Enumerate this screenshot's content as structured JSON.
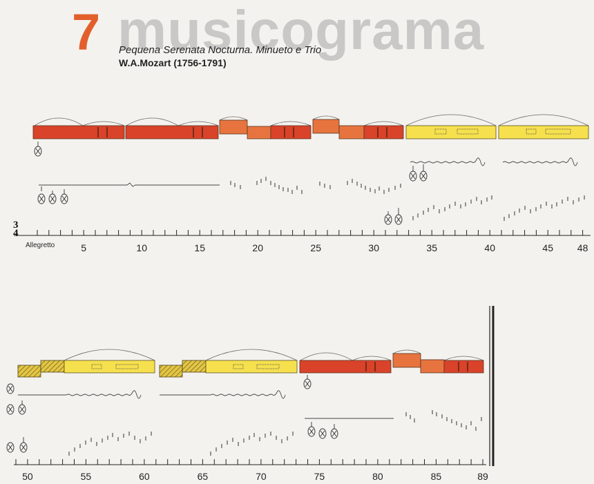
{
  "header": {
    "number": "7",
    "word": "musicograma",
    "subtitle": "Pequena Serenata Nocturna. Minueto e Trio",
    "composer": "W.A.Mozart (1756-1791)"
  },
  "time_signature": {
    "top": "3",
    "bottom": "4"
  },
  "tempo": "Allegretto",
  "colors": {
    "red": "#d94329",
    "orange": "#e7743e",
    "yellow": "#f6e04e",
    "hatch": "#d9b832",
    "title_number": "#e25f2c",
    "title_word": "#c9c8c6"
  },
  "row1": {
    "measure_labels": [
      "5",
      "10",
      "15",
      "20",
      "25",
      "30",
      "35",
      "40",
      "45",
      "48"
    ]
  },
  "row2": {
    "measure_labels": [
      "50",
      "55",
      "60",
      "65",
      "70",
      "75",
      "80",
      "85",
      "89"
    ]
  }
}
